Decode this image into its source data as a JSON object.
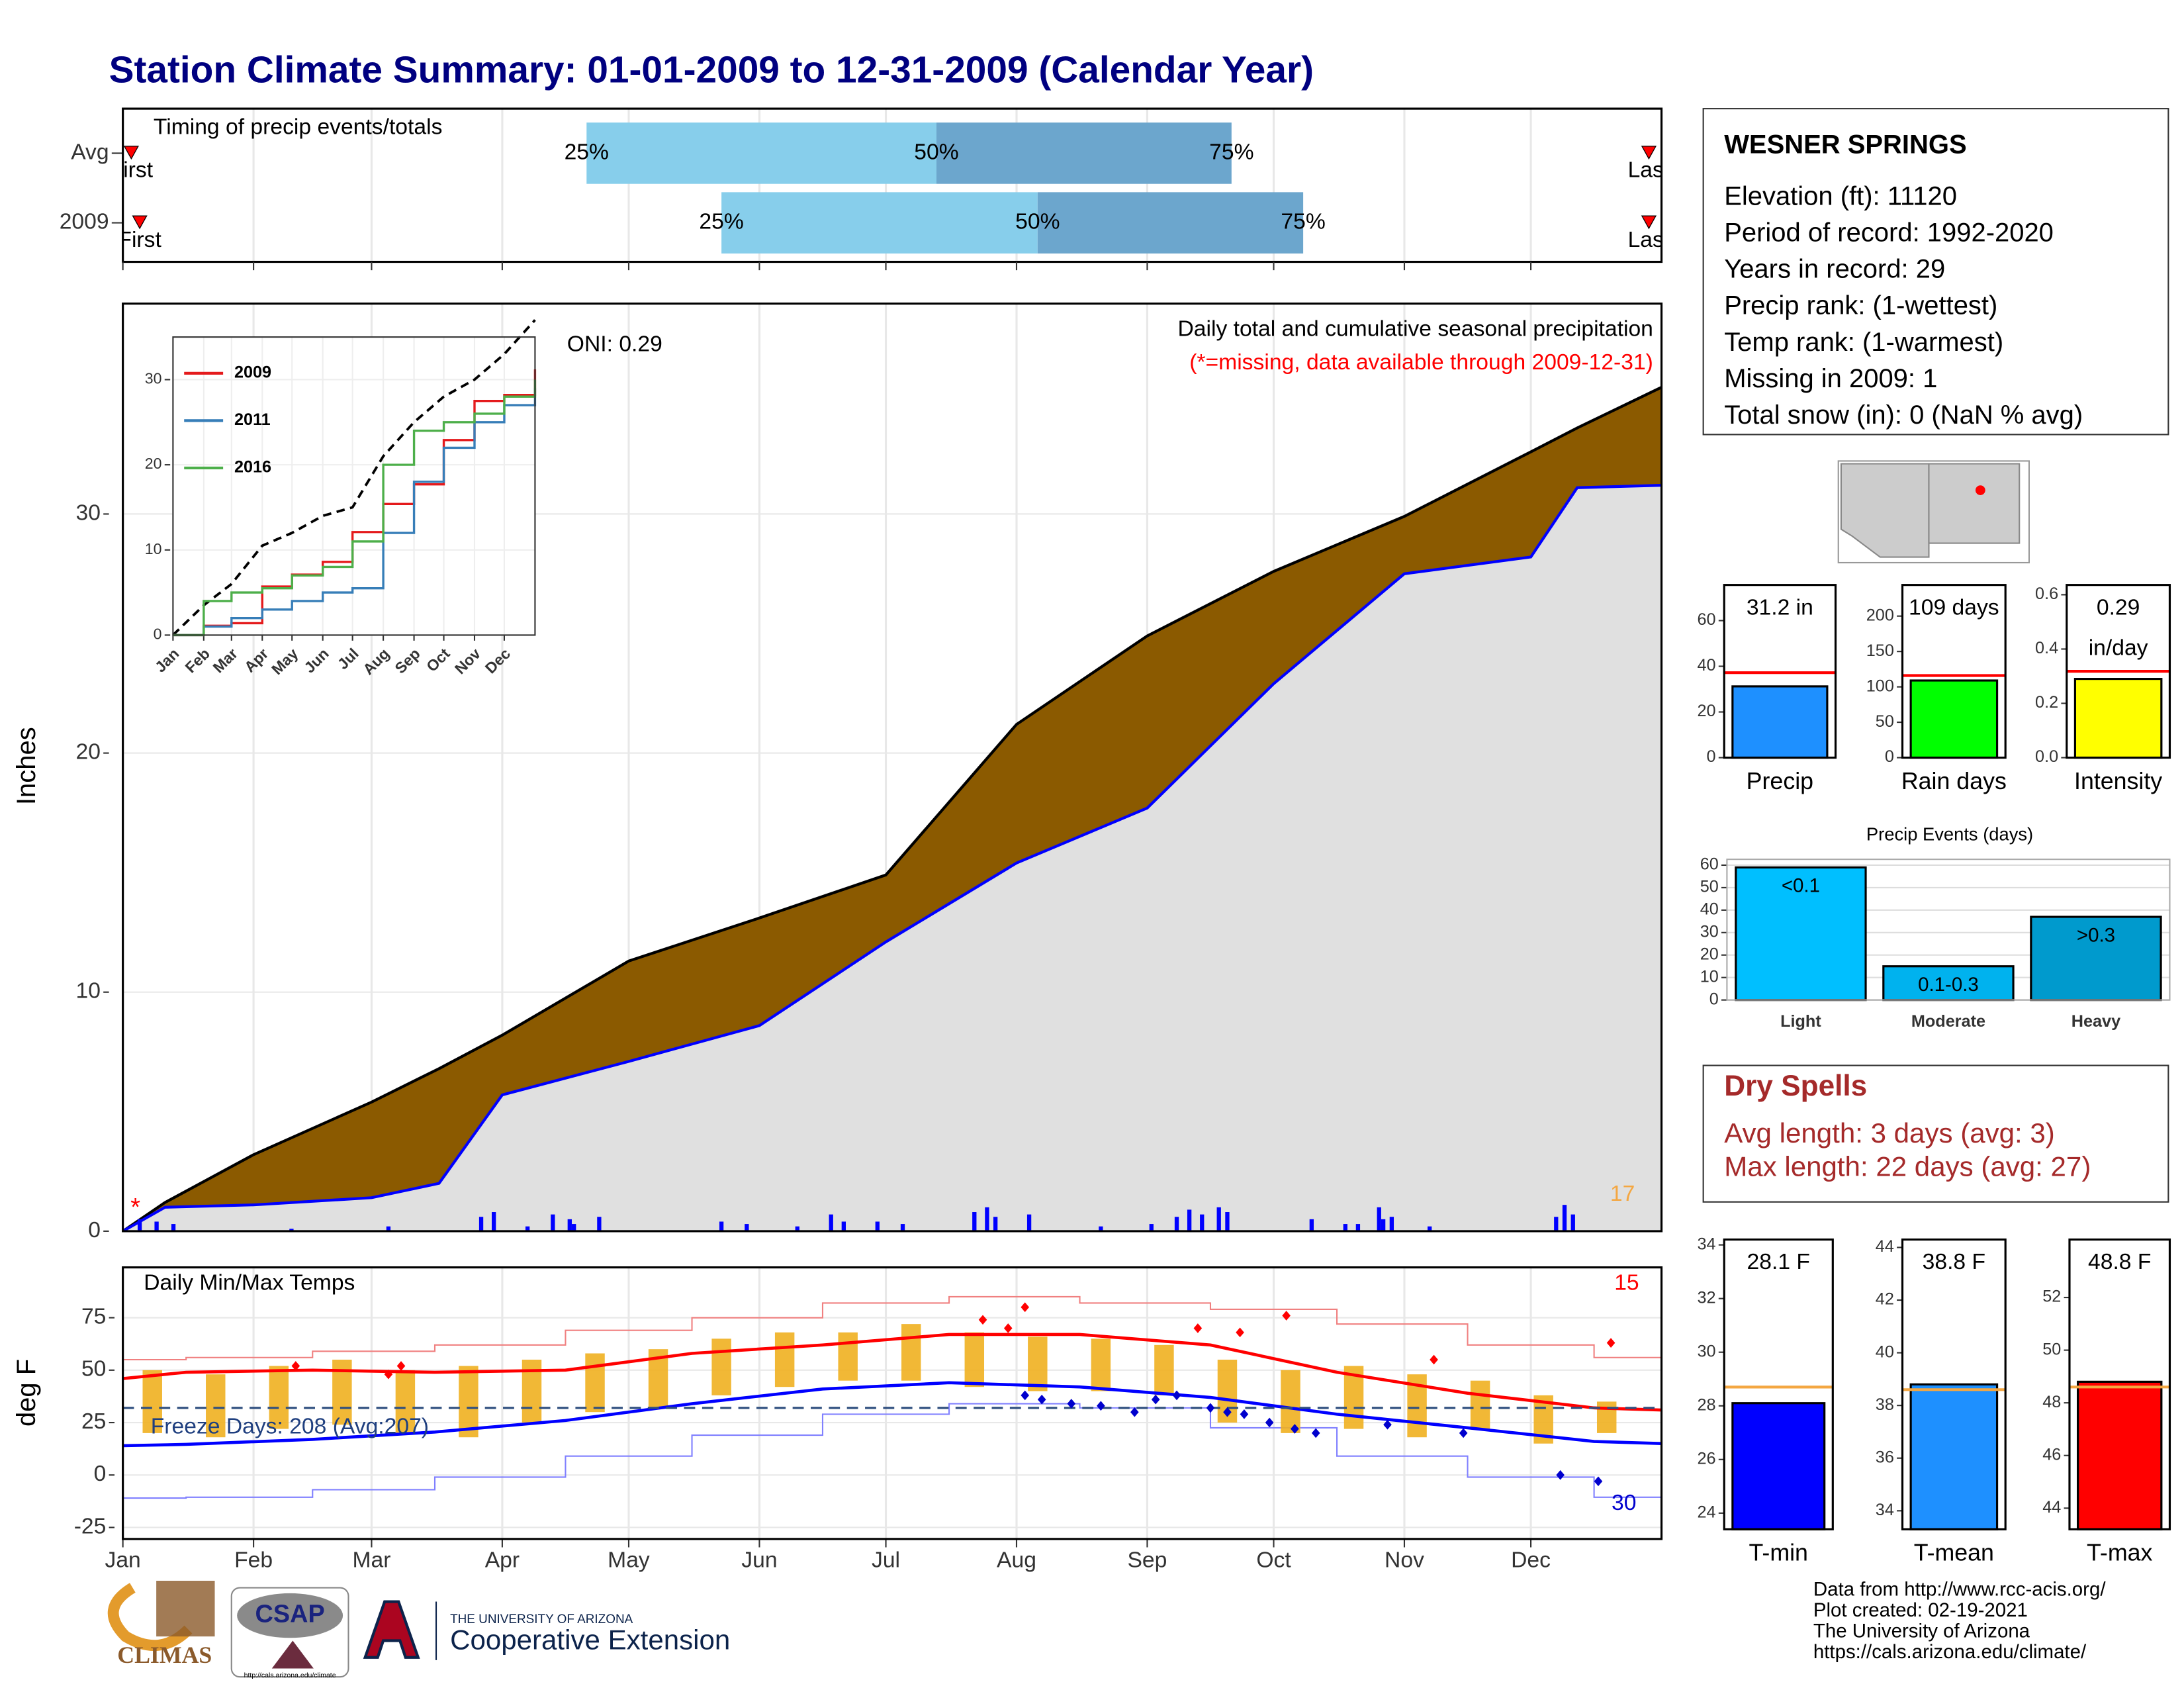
{
  "title": "Station Climate Summary: 01-01-2009 to 12-31-2009 (Calendar Year)",
  "station": {
    "name": "WESNER SPRINGS",
    "lines": [
      "Elevation (ft): 11120",
      "Period of record: 1992-2020",
      "Years in record: 29",
      "Precip rank:  (1-wettest)",
      "Temp rank:  (1-warmest)",
      "Missing in 2009: 1",
      "Total snow (in): 0 (NaN % avg)"
    ]
  },
  "dry_spells": {
    "title": "Dry Spells",
    "lines": [
      "Avg length: 3 days (avg: 3)",
      "Max length: 22 days (avg: 27)"
    ]
  },
  "footer": {
    "lines": [
      "Data from http://www.rcc-acis.org/",
      "Plot created: 02-19-2021",
      "The University of Arizona",
      "https://cals.arizona.edu/climate/"
    ]
  },
  "logos": {
    "climas": "CLIMAS",
    "csap": "CSAP",
    "csap_url": "http://cals.arizona.edu/climate",
    "ua": "THE UNIVERSITY OF ARIZONA",
    "coop": "Cooperative Extension"
  },
  "chart_data": [
    {
      "type": "timing",
      "title": "Timing of precip events/totals",
      "categories": [
        "Avg",
        "2009"
      ],
      "q25": [
        110,
        142
      ],
      "q50": [
        193,
        217
      ],
      "q75": [
        263,
        280
      ],
      "first": [
        2,
        4
      ],
      "last": [
        362,
        362
      ],
      "quantile_labels": [
        "25%",
        "50%",
        "75%"
      ],
      "first_label": "First",
      "last_label": "Last",
      "colors": [
        "#87ceeb",
        "#6ca6cd"
      ],
      "xlim": [
        0,
        365
      ]
    },
    {
      "type": "cumulative",
      "ylabel": "Inches",
      "annotation": "Daily total and cumulative seasonal precipitation",
      "note": "(*=missing, data available through 2009-12-31)",
      "oni": "ONI: 0.29",
      "missing_mark": "*",
      "count_label": "17",
      "xlim": [
        0,
        365
      ],
      "ylim": [
        0,
        38.8
      ],
      "yticks": [
        0,
        10,
        20,
        30
      ],
      "x": [
        0,
        10,
        31,
        59,
        75,
        90,
        120,
        151,
        181,
        212,
        243,
        273,
        304,
        334,
        345,
        365
      ],
      "series": [
        {
          "color": "#8b5a00",
          "values": [
            0,
            1.2,
            3.2,
            5.4,
            6.8,
            8.2,
            11.3,
            13.1,
            14.9,
            21.2,
            24.9,
            27.6,
            29.9,
            32.6,
            33.6,
            35.3
          ]
        },
        {
          "color": "#0000ff",
          "values": [
            0,
            1.0,
            1.1,
            1.4,
            2.0,
            5.7,
            7.1,
            8.6,
            12.1,
            15.4,
            17.7,
            22.9,
            27.5,
            28.2,
            31.1,
            31.2
          ]
        }
      ],
      "daily": {
        "color": "#0000ff",
        "x": [
          4,
          8,
          12,
          40,
          63,
          85,
          88,
          96,
          102,
          106,
          107,
          113,
          142,
          148,
          160,
          168,
          171,
          179,
          185,
          202,
          205,
          207,
          215,
          232,
          244,
          250,
          253,
          256,
          260,
          262,
          282,
          290,
          293,
          298,
          299,
          301,
          310,
          340,
          342,
          344
        ],
        "values": [
          0.5,
          0.4,
          0.3,
          0.1,
          0.2,
          0.6,
          0.8,
          0.2,
          0.7,
          0.5,
          0.3,
          0.6,
          0.4,
          0.3,
          0.2,
          0.7,
          0.4,
          0.4,
          0.3,
          0.8,
          1.0,
          0.6,
          0.7,
          0.2,
          0.3,
          0.6,
          0.9,
          0.7,
          1.0,
          0.8,
          0.5,
          0.3,
          0.3,
          1.0,
          0.5,
          0.6,
          0.2,
          0.6,
          1.1,
          0.7
        ]
      }
    },
    {
      "type": "line",
      "xlim": [
        0,
        365
      ],
      "ylim": [
        0,
        35
      ],
      "yticks": [
        0,
        10,
        20,
        30
      ],
      "x": [
        0,
        31,
        59,
        90,
        120,
        151,
        181,
        212,
        243,
        273,
        304,
        334,
        365
      ],
      "xticks": [
        {
          "value": 0,
          "label": "Jan"
        },
        {
          "value": 31,
          "label": "Feb"
        },
        {
          "value": 59,
          "label": "Mar"
        },
        {
          "value": 90,
          "label": "Apr"
        },
        {
          "value": 120,
          "label": "May"
        },
        {
          "value": 151,
          "label": "Jun"
        },
        {
          "value": 181,
          "label": "Jul"
        },
        {
          "value": 212,
          "label": "Aug"
        },
        {
          "value": 243,
          "label": "Sep"
        },
        {
          "value": 273,
          "label": "Oct"
        },
        {
          "value": 304,
          "label": "Nov"
        },
        {
          "value": 334,
          "label": "Dec"
        }
      ],
      "average": {
        "color": "#000000",
        "values": [
          0,
          3.5,
          6,
          10.5,
          12,
          14,
          15,
          21,
          25,
          28,
          30,
          33,
          37
        ]
      },
      "series": [
        {
          "name": "2009",
          "color": "#e41a1c",
          "values": [
            0,
            1.1,
            1.4,
            5.7,
            7.1,
            8.6,
            12.1,
            15.4,
            17.7,
            22.9,
            27.5,
            28.2,
            31.2
          ]
        },
        {
          "name": "2011",
          "color": "#377eb8",
          "values": [
            0,
            1,
            2,
            3,
            4,
            5,
            5.5,
            12,
            18,
            22,
            25,
            27,
            29
          ]
        },
        {
          "name": "2016",
          "color": "#4daf4a",
          "values": [
            0,
            4,
            5,
            5.5,
            7,
            8,
            11,
            20,
            24,
            25,
            26,
            28,
            30
          ]
        }
      ]
    },
    {
      "type": "temperature",
      "title": "Daily Min/Max Temps",
      "ylabel": "deg F",
      "freeze_label": "Freeze Days: 208 (Avg:207)",
      "high_count": "15",
      "low_count": "30",
      "freeze_line": 32,
      "xlim": [
        0,
        365
      ],
      "ylim": [
        -30.5,
        99
      ],
      "yticks": [
        -25,
        0,
        25,
        50,
        75
      ],
      "xticks": [
        {
          "value": 0,
          "label": "Jan"
        },
        {
          "value": 31,
          "label": "Feb"
        },
        {
          "value": 59,
          "label": "Mar"
        },
        {
          "value": 90,
          "label": "Apr"
        },
        {
          "value": 120,
          "label": "May"
        },
        {
          "value": 151,
          "label": "Jun"
        },
        {
          "value": 181,
          "label": "Jul"
        },
        {
          "value": 212,
          "label": "Aug"
        },
        {
          "value": 243,
          "label": "Sep"
        },
        {
          "value": 273,
          "label": "Oct"
        },
        {
          "value": 304,
          "label": "Nov"
        },
        {
          "value": 334,
          "label": "Dec"
        }
      ],
      "x": [
        0,
        15,
        45,
        74,
        105,
        135,
        166,
        196,
        227,
        258,
        288,
        319,
        349,
        365
      ],
      "series": [
        {
          "color": "#f08080",
          "values": [
            55,
            56,
            59,
            62,
            69,
            75,
            82,
            85,
            82,
            79,
            72,
            62,
            56,
            55
          ]
        },
        {
          "color": "#8080ff",
          "values": [
            -11,
            -10.6,
            -7,
            -1,
            9,
            19,
            29,
            34,
            32,
            22.5,
            9,
            -1,
            -10.6,
            -11
          ]
        },
        {
          "color": "#ff0000",
          "values": [
            46,
            49,
            50,
            49,
            50,
            58,
            62,
            67,
            67,
            62,
            49,
            39,
            32,
            31
          ]
        },
        {
          "color": "#0000ff",
          "values": [
            14,
            14.6,
            17,
            20.5,
            26,
            34,
            41,
            44,
            42,
            37,
            29,
            22.5,
            16,
            15
          ]
        }
      ],
      "daily": {
        "color": "#f0b020",
        "x": [
          7,
          22,
          37,
          52,
          67,
          82,
          97,
          112,
          127,
          142,
          157,
          172,
          187,
          202,
          217,
          232,
          247,
          262,
          277,
          292,
          307,
          322,
          337,
          352
        ],
        "low": [
          20,
          18,
          22,
          24,
          20,
          18,
          25,
          30,
          32,
          38,
          42,
          45,
          45,
          42,
          40,
          40,
          38,
          25,
          20,
          22,
          18,
          22,
          15,
          20
        ],
        "high": [
          50,
          48,
          52,
          55,
          50,
          52,
          55,
          58,
          60,
          65,
          68,
          68,
          72,
          68,
          66,
          65,
          62,
          55,
          50,
          52,
          48,
          45,
          38,
          35
        ]
      },
      "record_highs": {
        "color": "#ff0000",
        "x": [
          41,
          63,
          66,
          204,
          210,
          214,
          255,
          265,
          276,
          311,
          353
        ],
        "values": [
          52,
          48,
          52,
          74,
          70,
          80,
          70,
          68,
          76,
          55,
          63
        ]
      },
      "record_lows": {
        "color": "#0000cd",
        "x": [
          214,
          218,
          225,
          232,
          240,
          245,
          250,
          258,
          262,
          266,
          272,
          278,
          283,
          300,
          318,
          341,
          350
        ],
        "values": [
          38,
          36,
          34,
          33,
          30,
          36,
          38,
          32,
          30,
          29,
          25,
          22,
          20,
          24,
          20,
          0,
          -3
        ]
      }
    },
    {
      "type": "stat",
      "categories": [
        "Precip"
      ],
      "values": [
        31.2
      ],
      "value_labels": [
        "31.2 in"
      ],
      "avg": 37.2,
      "color": "#1e90ff",
      "avg_color": "#ff0000",
      "ylim": [
        0,
        75.6
      ],
      "yticks": [
        0,
        20,
        40,
        60
      ]
    },
    {
      "type": "stat",
      "categories": [
        "Rain days"
      ],
      "values": [
        109
      ],
      "value_labels": [
        "109 days"
      ],
      "avg": 116,
      "color": "#00ff00",
      "avg_color": "#ff0000",
      "ylim": [
        0,
        244
      ],
      "yticks": [
        0,
        50,
        100,
        150,
        200
      ]
    },
    {
      "type": "stat",
      "categories": [
        "Intensity"
      ],
      "values": [
        0.29
      ],
      "value_labels": [
        "0.29"
      ],
      "unit_label": "in/day",
      "avg": 0.318,
      "color": "#ffff00",
      "avg_color": "#ff0000",
      "ylim": [
        0,
        0.636
      ],
      "yticks": [
        {
          "value": 0,
          "label": "0.0"
        },
        0.2,
        0.4,
        0.6
      ]
    },
    {
      "type": "bar",
      "title": "Precip Events (days)",
      "categories": [
        "Light",
        "Moderate",
        "Heavy"
      ],
      "values": [
        59,
        15,
        37
      ],
      "value_labels": [
        "<0.1",
        "0.1-0.3",
        ">0.3"
      ],
      "colors": [
        "#00bfff",
        "#00b2ee",
        "#009acd"
      ],
      "ylim": [
        0,
        62.6
      ],
      "yticks": [
        0,
        10,
        20,
        30,
        40,
        50,
        60
      ],
      "grid": true
    },
    {
      "type": "stat",
      "categories": [
        "T-min"
      ],
      "values": [
        28.1
      ],
      "value_labels": [
        "28.1 F"
      ],
      "avg": 28.7,
      "color": "#0000ff",
      "avg_color": "#f4a742",
      "ylim": [
        23.4,
        34.2
      ],
      "yticks": [
        24,
        26,
        28,
        30,
        32,
        34
      ]
    },
    {
      "type": "stat",
      "categories": [
        "T-mean"
      ],
      "values": [
        38.8
      ],
      "value_labels": [
        "38.8 F"
      ],
      "avg": 38.6,
      "color": "#1e90ff",
      "avg_color": "#f4a742",
      "ylim": [
        33.3,
        44.3
      ],
      "yticks": [
        34,
        36,
        38,
        40,
        42,
        44
      ]
    },
    {
      "type": "stat",
      "categories": [
        "T-max"
      ],
      "values": [
        48.8
      ],
      "value_labels": [
        "48.8 F"
      ],
      "avg": 48.6,
      "color": "#ff0000",
      "avg_color": "#f4a742",
      "ylim": [
        43.2,
        54.2
      ],
      "yticks": [
        44,
        46,
        48,
        50,
        52
      ]
    }
  ]
}
